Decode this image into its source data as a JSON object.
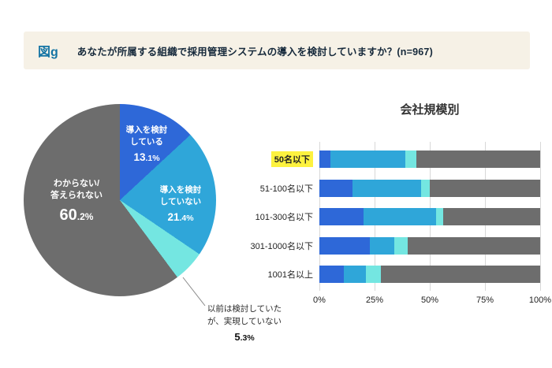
{
  "header": {
    "figure_label": "図g",
    "title": "あなたが所属する組織で採用管理システムの導入を検討していますか？(n=967)"
  },
  "pie": {
    "labels": {
      "considering": {
        "line1": "導入を検討",
        "line2": "している",
        "value_main": "13",
        "value_sub": ".1%"
      },
      "not_considering": {
        "line1": "導入を検討",
        "line2": "していない",
        "value_main": "21",
        "value_sub": ".4%"
      },
      "unknown": {
        "line1": "わからない/",
        "line2": "答えられない",
        "value_main": "60",
        "value_sub": ".2%"
      },
      "previously": {
        "line1": "以前は検討していた",
        "line2": "が、実現していない",
        "value_main": "5",
        "value_sub": ".3%"
      }
    }
  },
  "bar_chart": {
    "title": "会社規模別"
  },
  "colors": {
    "considering": "#2e68d8",
    "not_considering": "#2fa6d9",
    "previously": "#74e6e1",
    "unknown": "#6d6d6d",
    "highlight": "#fdf23f",
    "header_background": "#f6f1e6"
  },
  "chart_data": [
    {
      "type": "pie",
      "title": "あなたが所属する組織で採用管理システムの導入を検討していますか？(n=967)",
      "labels": [
        "導入を検討している",
        "導入を検討していない",
        "以前は検討していたが、実現していない",
        "わからない/答えられない"
      ],
      "values": [
        13.1,
        21.4,
        5.3,
        60.2
      ],
      "colors": [
        "#2e68d8",
        "#2fa6d9",
        "#74e6e1",
        "#6d6d6d"
      ],
      "start_angle": "top",
      "direction": "clockwise"
    },
    {
      "type": "bar",
      "subtype": "horizontal-stacked",
      "title": "会社規模別",
      "categories": [
        "50名以下",
        "51-100名以下",
        "101-300名以下",
        "301-1000名以下",
        "1001名以上"
      ],
      "series": [
        {
          "name": "導入を検討している",
          "color": "#2e68d8",
          "values": [
            5,
            15,
            20,
            23,
            11
          ]
        },
        {
          "name": "導入を検討していない",
          "color": "#2fa6d9",
          "values": [
            34,
            31,
            33,
            11,
            10
          ]
        },
        {
          "name": "以前は検討していたが、実現していない",
          "color": "#74e6e1",
          "values": [
            5,
            4,
            3,
            6,
            7
          ]
        },
        {
          "name": "わからない/答えられない",
          "color": "#6d6d6d",
          "values": [
            56,
            50,
            44,
            60,
            72
          ]
        }
      ],
      "x_ticks": [
        "0%",
        "25%",
        "50%",
        "75%",
        "100%"
      ],
      "xlim": [
        0,
        100
      ],
      "grid": true,
      "legend": "none",
      "highlighted_category": "50名以下"
    }
  ]
}
